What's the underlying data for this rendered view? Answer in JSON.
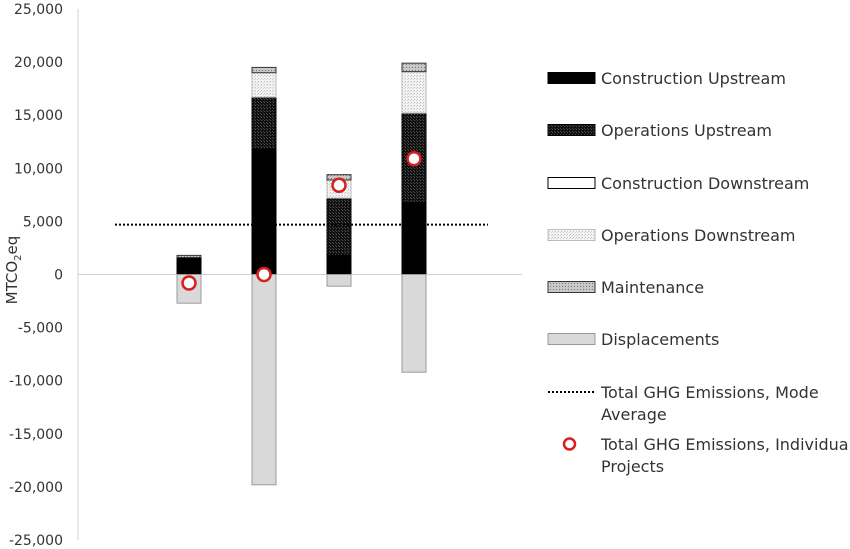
{
  "chart_data": {
    "type": "bar",
    "stacked": true,
    "ylabel_main": "MTCO",
    "ylabel_sub": "2",
    "ylabel_tail": "eq",
    "ylim": [
      -25000,
      25000
    ],
    "yticks": [
      {
        "value": 25000,
        "label": "25,000"
      },
      {
        "value": 20000,
        "label": "20,000"
      },
      {
        "value": 15000,
        "label": "15,000"
      },
      {
        "value": 10000,
        "label": "10,000"
      },
      {
        "value": 5000,
        "label": "5,000"
      },
      {
        "value": 0,
        "label": "0"
      },
      {
        "value": -5000,
        "label": "-5,000"
      },
      {
        "value": -10000,
        "label": "-10,000"
      },
      {
        "value": -15000,
        "label": "-15,000"
      },
      {
        "value": -20000,
        "label": "-20,000"
      },
      {
        "value": -25000,
        "label": "-25,000"
      }
    ],
    "categories": [
      "",
      "",
      "",
      ""
    ],
    "series": [
      {
        "name": "Construction Upstream",
        "key": "cu",
        "color": "#000000",
        "values": [
          1600,
          11800,
          1800,
          6800
        ]
      },
      {
        "name": "Operations Upstream",
        "key": "ou",
        "color": "#1a1a1a",
        "values": [
          0,
          4900,
          5400,
          8400
        ]
      },
      {
        "name": "Construction Downstream",
        "key": "cd",
        "color": "#ffffff",
        "values": [
          0,
          0,
          0,
          0
        ]
      },
      {
        "name": "Operations Downstream",
        "key": "od",
        "color": "#eeeeee",
        "values": [
          0,
          2300,
          1700,
          3900
        ]
      },
      {
        "name": "Maintenance",
        "key": "mt",
        "color": "#bbbbbb",
        "values": [
          200,
          500,
          500,
          800
        ]
      },
      {
        "name": "Displacements",
        "key": "dp",
        "color": "#d9d9d9",
        "values": [
          -2700,
          -19800,
          -1100,
          -9200
        ]
      }
    ],
    "mode_average": {
      "name": "Total GHG Emissions, Mode Average",
      "value": 4700
    },
    "individual_projects": {
      "name": "Total GHG Emissions, Individual Projects",
      "values": [
        -800,
        0,
        8400,
        10900
      ],
      "color": "#d81e1e"
    },
    "legend_position": "right",
    "grid": false
  }
}
